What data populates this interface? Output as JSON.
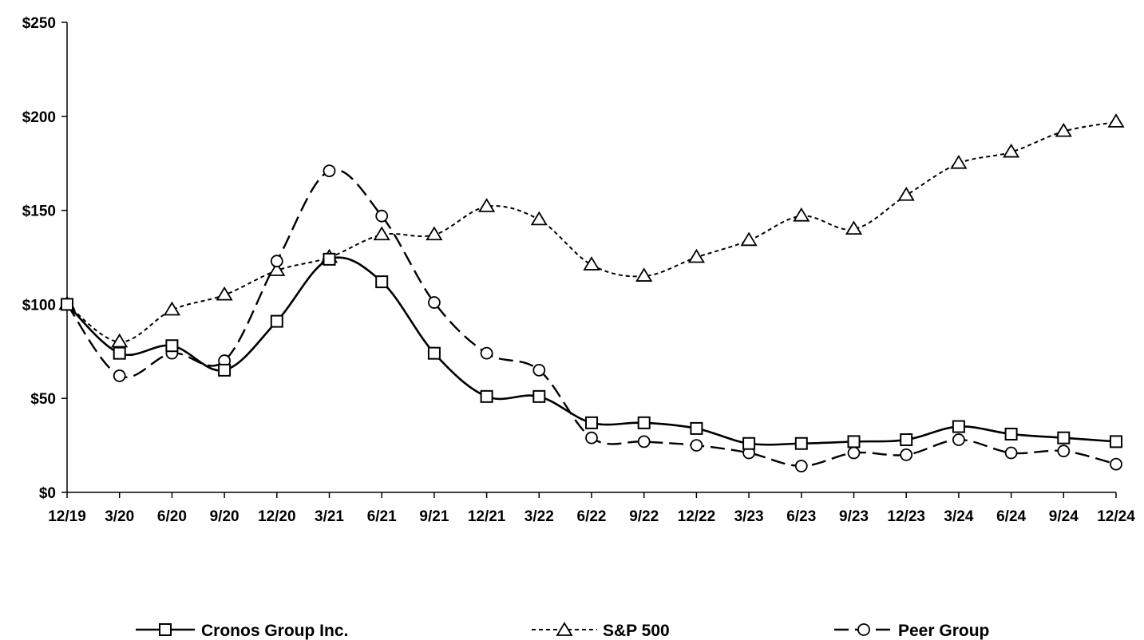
{
  "chart_data": {
    "type": "line",
    "categories": [
      "12/19",
      "3/20",
      "6/20",
      "9/20",
      "12/20",
      "3/21",
      "6/21",
      "9/21",
      "12/21",
      "3/22",
      "6/22",
      "9/22",
      "12/22",
      "3/23",
      "6/23",
      "9/23",
      "12/23",
      "3/24",
      "6/24",
      "9/24",
      "12/24"
    ],
    "y_ticks": [
      "$0",
      "$50",
      "$100",
      "$150",
      "$200",
      "$250"
    ],
    "ylim": [
      0,
      250
    ],
    "grid": false,
    "legend_position": "bottom",
    "series": [
      {
        "name": "Cronos Group Inc.",
        "line_style": "solid",
        "marker": "square",
        "values": [
          100,
          74,
          78,
          65,
          91,
          124,
          112,
          74,
          51,
          51,
          37,
          37,
          34,
          26,
          26,
          27,
          28,
          35,
          31,
          29,
          27
        ]
      },
      {
        "name": "S&P 500",
        "line_style": "dotted",
        "marker": "triangle",
        "values": [
          100,
          80,
          97,
          105,
          118,
          125,
          137,
          137,
          152,
          145,
          121,
          115,
          125,
          134,
          147,
          140,
          158,
          175,
          181,
          192,
          197
        ]
      },
      {
        "name": "Peer Group",
        "line_style": "dashed",
        "marker": "circle",
        "values": [
          100,
          62,
          74,
          70,
          123,
          171,
          147,
          101,
          74,
          65,
          29,
          27,
          25,
          21,
          14,
          21,
          20,
          28,
          21,
          22,
          15
        ]
      }
    ]
  }
}
